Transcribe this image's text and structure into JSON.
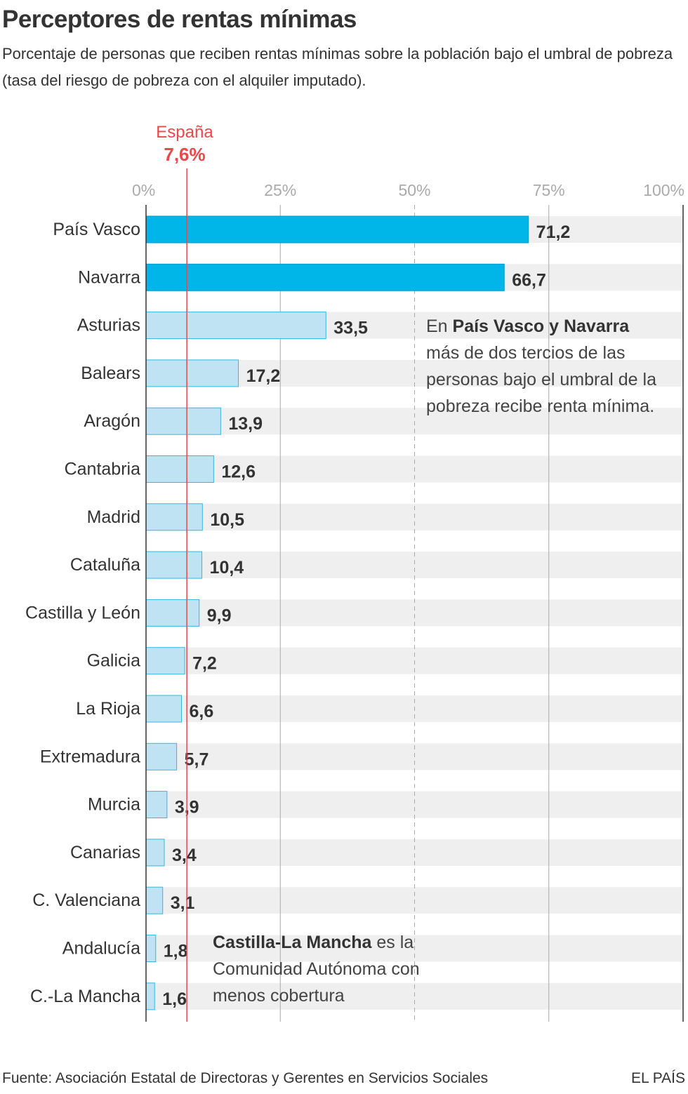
{
  "title": "Perceptores de rentas mínimas",
  "subtitle": "Porcentaje de personas que reciben rentas mínimas sobre la población bajo el umbral de pobreza (tasa del riesgo de pobreza con el alquiler imputado).",
  "source": "Fuente: Asociación Estatal de Directoras y Gerentes en Servicios Sociales",
  "brand": "EL PAÍS",
  "reference": {
    "name": "España",
    "value_label": "7,6%",
    "value": 7.6
  },
  "annotations": {
    "top": {
      "prefix": "En ",
      "bold": "País Vasco y Navarra",
      "rest": " más de dos tercios de las personas bajo el umbral de la pobreza recibe renta mínima."
    },
    "bottom": {
      "bold": "Castilla-La Mancha",
      "rest": " es la Comunidad Autónoma con menos cobertura"
    }
  },
  "colors": {
    "highlight": "#00b5e8",
    "highlight_stroke": "#0099cc",
    "normal": "#bfe3f2",
    "normal_stroke": "#33b8e0",
    "reference": "#e8494b",
    "band": "#efefef",
    "grid": "#aaaaaa",
    "axis": "#333333",
    "tick_text": "#aaaaaa"
  },
  "chart_data": {
    "type": "bar",
    "orientation": "horizontal",
    "categories": [
      "País Vasco",
      "Navarra",
      "Asturias",
      "Balears",
      "Aragón",
      "Cantabria",
      "Madrid",
      "Cataluña",
      "Castilla y León",
      "Galicia",
      "La Rioja",
      "Extremadura",
      "Murcia",
      "Canarias",
      "C. Valenciana",
      "Andalucía",
      "C.-La Mancha"
    ],
    "values": [
      71.2,
      66.7,
      33.5,
      17.2,
      13.9,
      12.6,
      10.5,
      10.4,
      9.9,
      7.2,
      6.6,
      5.7,
      3.9,
      3.4,
      3.1,
      1.8,
      1.6
    ],
    "value_labels": [
      "71,2",
      "66,7",
      "33,5",
      "17,2",
      "13,9",
      "12,6",
      "10,5",
      "10,4",
      "9,9",
      "7,2",
      "6,6",
      "5,7",
      "3,9",
      "3,4",
      "3,1",
      "1,8",
      "1,6"
    ],
    "highlighted": [
      "País Vasco",
      "Navarra"
    ],
    "xlim": [
      0,
      100
    ],
    "xticks": [
      0,
      25,
      50,
      75,
      100
    ],
    "xtick_labels": [
      "0%",
      "25%",
      "50%",
      "75%",
      "100%"
    ],
    "grid": true,
    "reference_line": 7.6
  }
}
